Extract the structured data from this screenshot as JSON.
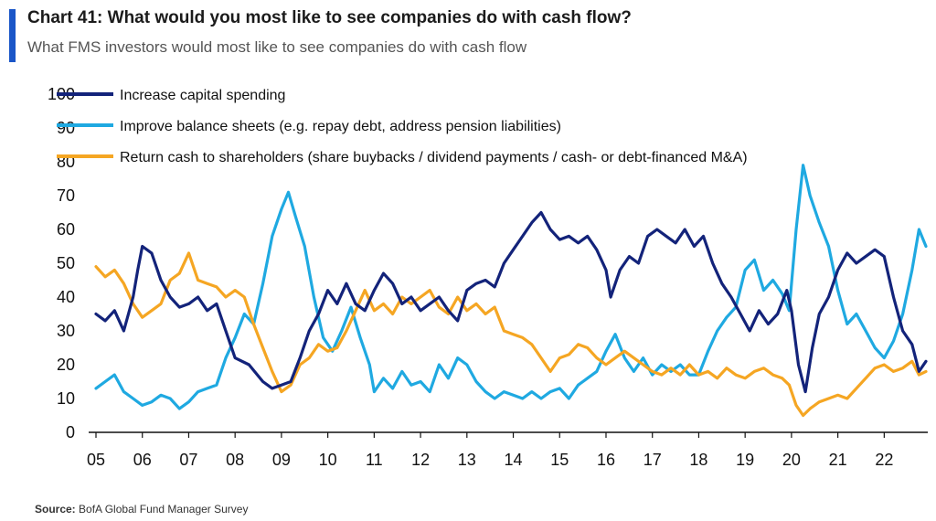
{
  "header": {
    "title": "Chart 41: What would you most like to see companies do with cash flow?",
    "subtitle": "What FMS investors would most like to see companies do with cash flow"
  },
  "footer": {
    "source_label": "Source:",
    "source_text": "BofA Global Fund Manager Survey"
  },
  "colors": {
    "accent_bar": "#1a56c8",
    "capex": "#13237a",
    "balance": "#1fa9e1",
    "shareholders": "#f5a623"
  },
  "chart_data": {
    "type": "line",
    "title": "",
    "xlabel": "",
    "ylabel": "",
    "ylim": [
      0,
      100
    ],
    "xlim": [
      2005,
      2022.9
    ],
    "yticks": [
      "0",
      "10",
      "20",
      "30",
      "40",
      "50",
      "60",
      "70",
      "80",
      "90",
      "100"
    ],
    "xticks": [
      {
        "value": 2005,
        "label": "05"
      },
      {
        "value": 2006,
        "label": "06"
      },
      {
        "value": 2007,
        "label": "07"
      },
      {
        "value": 2008,
        "label": "08"
      },
      {
        "value": 2009,
        "label": "09"
      },
      {
        "value": 2010,
        "label": "10"
      },
      {
        "value": 2011,
        "label": "11"
      },
      {
        "value": 2012,
        "label": "12"
      },
      {
        "value": 2013,
        "label": "13"
      },
      {
        "value": 2014,
        "label": "14"
      },
      {
        "value": 2015,
        "label": "15"
      },
      {
        "value": 2016,
        "label": "16"
      },
      {
        "value": 2017,
        "label": "17"
      },
      {
        "value": 2018,
        "label": "18"
      },
      {
        "value": 2019,
        "label": "19"
      },
      {
        "value": 2020,
        "label": "20"
      },
      {
        "value": 2021,
        "label": "21"
      },
      {
        "value": 2022,
        "label": "22"
      }
    ],
    "grid": false,
    "legend_position": "top-left",
    "series": [
      {
        "name": "Increase capital spending",
        "color": "#13237a",
        "points": [
          [
            2005.0,
            35
          ],
          [
            2005.2,
            33
          ],
          [
            2005.4,
            36
          ],
          [
            2005.6,
            30
          ],
          [
            2005.8,
            40
          ],
          [
            2005.9,
            48
          ],
          [
            2006.0,
            55
          ],
          [
            2006.2,
            53
          ],
          [
            2006.4,
            45
          ],
          [
            2006.6,
            40
          ],
          [
            2006.8,
            37
          ],
          [
            2007.0,
            38
          ],
          [
            2007.2,
            40
          ],
          [
            2007.4,
            36
          ],
          [
            2007.6,
            38
          ],
          [
            2007.8,
            30
          ],
          [
            2008.0,
            22
          ],
          [
            2008.3,
            20
          ],
          [
            2008.6,
            15
          ],
          [
            2008.8,
            13
          ],
          [
            2009.0,
            14
          ],
          [
            2009.2,
            15
          ],
          [
            2009.4,
            22
          ],
          [
            2009.6,
            30
          ],
          [
            2009.8,
            35
          ],
          [
            2010.0,
            42
          ],
          [
            2010.2,
            38
          ],
          [
            2010.4,
            44
          ],
          [
            2010.6,
            38
          ],
          [
            2010.8,
            36
          ],
          [
            2011.0,
            42
          ],
          [
            2011.2,
            47
          ],
          [
            2011.4,
            44
          ],
          [
            2011.6,
            38
          ],
          [
            2011.8,
            40
          ],
          [
            2012.0,
            36
          ],
          [
            2012.2,
            38
          ],
          [
            2012.4,
            40
          ],
          [
            2012.6,
            36
          ],
          [
            2012.8,
            33
          ],
          [
            2013.0,
            42
          ],
          [
            2013.2,
            44
          ],
          [
            2013.4,
            45
          ],
          [
            2013.6,
            43
          ],
          [
            2013.8,
            50
          ],
          [
            2014.0,
            54
          ],
          [
            2014.2,
            58
          ],
          [
            2014.4,
            62
          ],
          [
            2014.6,
            65
          ],
          [
            2014.8,
            60
          ],
          [
            2015.0,
            57
          ],
          [
            2015.2,
            58
          ],
          [
            2015.4,
            56
          ],
          [
            2015.6,
            58
          ],
          [
            2015.8,
            54
          ],
          [
            2016.0,
            48
          ],
          [
            2016.1,
            40
          ],
          [
            2016.3,
            48
          ],
          [
            2016.5,
            52
          ],
          [
            2016.7,
            50
          ],
          [
            2016.9,
            58
          ],
          [
            2017.1,
            60
          ],
          [
            2017.3,
            58
          ],
          [
            2017.5,
            56
          ],
          [
            2017.7,
            60
          ],
          [
            2017.9,
            55
          ],
          [
            2018.1,
            58
          ],
          [
            2018.3,
            50
          ],
          [
            2018.5,
            44
          ],
          [
            2018.7,
            40
          ],
          [
            2018.9,
            35
          ],
          [
            2019.1,
            30
          ],
          [
            2019.3,
            36
          ],
          [
            2019.5,
            32
          ],
          [
            2019.7,
            35
          ],
          [
            2019.9,
            42
          ],
          [
            2020.0,
            36
          ],
          [
            2020.15,
            20
          ],
          [
            2020.3,
            12
          ],
          [
            2020.45,
            25
          ],
          [
            2020.6,
            35
          ],
          [
            2020.8,
            40
          ],
          [
            2021.0,
            48
          ],
          [
            2021.2,
            53
          ],
          [
            2021.4,
            50
          ],
          [
            2021.6,
            52
          ],
          [
            2021.8,
            54
          ],
          [
            2022.0,
            52
          ],
          [
            2022.2,
            40
          ],
          [
            2022.4,
            30
          ],
          [
            2022.6,
            26
          ],
          [
            2022.75,
            18
          ],
          [
            2022.9,
            21
          ]
        ]
      },
      {
        "name": "Improve balance sheets (e.g. repay debt, address pension liabilities)",
        "color": "#1fa9e1",
        "points": [
          [
            2005.0,
            13
          ],
          [
            2005.2,
            15
          ],
          [
            2005.4,
            17
          ],
          [
            2005.6,
            12
          ],
          [
            2005.8,
            10
          ],
          [
            2006.0,
            8
          ],
          [
            2006.2,
            9
          ],
          [
            2006.4,
            11
          ],
          [
            2006.6,
            10
          ],
          [
            2006.8,
            7
          ],
          [
            2007.0,
            9
          ],
          [
            2007.2,
            12
          ],
          [
            2007.4,
            13
          ],
          [
            2007.6,
            14
          ],
          [
            2007.8,
            22
          ],
          [
            2008.0,
            28
          ],
          [
            2008.2,
            35
          ],
          [
            2008.4,
            32
          ],
          [
            2008.6,
            44
          ],
          [
            2008.8,
            58
          ],
          [
            2009.0,
            66
          ],
          [
            2009.15,
            71
          ],
          [
            2009.3,
            64
          ],
          [
            2009.5,
            55
          ],
          [
            2009.7,
            40
          ],
          [
            2009.9,
            28
          ],
          [
            2010.1,
            24
          ],
          [
            2010.3,
            30
          ],
          [
            2010.5,
            37
          ],
          [
            2010.7,
            28
          ],
          [
            2010.9,
            20
          ],
          [
            2011.0,
            12
          ],
          [
            2011.2,
            16
          ],
          [
            2011.4,
            13
          ],
          [
            2011.6,
            18
          ],
          [
            2011.8,
            14
          ],
          [
            2012.0,
            15
          ],
          [
            2012.2,
            12
          ],
          [
            2012.4,
            20
          ],
          [
            2012.6,
            16
          ],
          [
            2012.8,
            22
          ],
          [
            2013.0,
            20
          ],
          [
            2013.2,
            15
          ],
          [
            2013.4,
            12
          ],
          [
            2013.6,
            10
          ],
          [
            2013.8,
            12
          ],
          [
            2014.0,
            11
          ],
          [
            2014.2,
            10
          ],
          [
            2014.4,
            12
          ],
          [
            2014.6,
            10
          ],
          [
            2014.8,
            12
          ],
          [
            2015.0,
            13
          ],
          [
            2015.2,
            10
          ],
          [
            2015.4,
            14
          ],
          [
            2015.6,
            16
          ],
          [
            2015.8,
            18
          ],
          [
            2016.0,
            24
          ],
          [
            2016.2,
            29
          ],
          [
            2016.4,
            22
          ],
          [
            2016.6,
            18
          ],
          [
            2016.8,
            22
          ],
          [
            2017.0,
            17
          ],
          [
            2017.2,
            20
          ],
          [
            2017.4,
            18
          ],
          [
            2017.6,
            20
          ],
          [
            2017.8,
            17
          ],
          [
            2018.0,
            17
          ],
          [
            2018.2,
            24
          ],
          [
            2018.4,
            30
          ],
          [
            2018.6,
            34
          ],
          [
            2018.8,
            37
          ],
          [
            2019.0,
            48
          ],
          [
            2019.2,
            51
          ],
          [
            2019.4,
            42
          ],
          [
            2019.6,
            45
          ],
          [
            2019.8,
            41
          ],
          [
            2019.95,
            36
          ],
          [
            2020.1,
            60
          ],
          [
            2020.25,
            79
          ],
          [
            2020.4,
            70
          ],
          [
            2020.6,
            62
          ],
          [
            2020.8,
            55
          ],
          [
            2021.0,
            42
          ],
          [
            2021.2,
            32
          ],
          [
            2021.4,
            35
          ],
          [
            2021.6,
            30
          ],
          [
            2021.8,
            25
          ],
          [
            2022.0,
            22
          ],
          [
            2022.2,
            27
          ],
          [
            2022.4,
            35
          ],
          [
            2022.6,
            48
          ],
          [
            2022.75,
            60
          ],
          [
            2022.9,
            55
          ]
        ]
      },
      {
        "name": "Return cash to shareholders (share buybacks / dividend payments / cash- or debt-financed M&A)",
        "color": "#f5a623",
        "points": [
          [
            2005.0,
            49
          ],
          [
            2005.2,
            46
          ],
          [
            2005.4,
            48
          ],
          [
            2005.6,
            44
          ],
          [
            2005.8,
            38
          ],
          [
            2006.0,
            34
          ],
          [
            2006.2,
            36
          ],
          [
            2006.4,
            38
          ],
          [
            2006.6,
            45
          ],
          [
            2006.8,
            47
          ],
          [
            2007.0,
            53
          ],
          [
            2007.2,
            45
          ],
          [
            2007.4,
            44
          ],
          [
            2007.6,
            43
          ],
          [
            2007.8,
            40
          ],
          [
            2008.0,
            42
          ],
          [
            2008.2,
            40
          ],
          [
            2008.4,
            32
          ],
          [
            2008.6,
            25
          ],
          [
            2008.8,
            18
          ],
          [
            2009.0,
            12
          ],
          [
            2009.2,
            14
          ],
          [
            2009.4,
            20
          ],
          [
            2009.6,
            22
          ],
          [
            2009.8,
            26
          ],
          [
            2010.0,
            24
          ],
          [
            2010.2,
            25
          ],
          [
            2010.4,
            30
          ],
          [
            2010.6,
            36
          ],
          [
            2010.8,
            42
          ],
          [
            2011.0,
            36
          ],
          [
            2011.2,
            38
          ],
          [
            2011.4,
            35
          ],
          [
            2011.6,
            40
          ],
          [
            2011.8,
            38
          ],
          [
            2012.0,
            40
          ],
          [
            2012.2,
            42
          ],
          [
            2012.4,
            37
          ],
          [
            2012.6,
            35
          ],
          [
            2012.8,
            40
          ],
          [
            2013.0,
            36
          ],
          [
            2013.2,
            38
          ],
          [
            2013.4,
            35
          ],
          [
            2013.6,
            37
          ],
          [
            2013.8,
            30
          ],
          [
            2014.0,
            29
          ],
          [
            2014.2,
            28
          ],
          [
            2014.4,
            26
          ],
          [
            2014.6,
            22
          ],
          [
            2014.8,
            18
          ],
          [
            2015.0,
            22
          ],
          [
            2015.2,
            23
          ],
          [
            2015.4,
            26
          ],
          [
            2015.6,
            25
          ],
          [
            2015.8,
            22
          ],
          [
            2016.0,
            20
          ],
          [
            2016.2,
            22
          ],
          [
            2016.4,
            24
          ],
          [
            2016.6,
            22
          ],
          [
            2016.8,
            20
          ],
          [
            2017.0,
            18
          ],
          [
            2017.2,
            17
          ],
          [
            2017.4,
            19
          ],
          [
            2017.6,
            17
          ],
          [
            2017.8,
            20
          ],
          [
            2018.0,
            17
          ],
          [
            2018.2,
            18
          ],
          [
            2018.4,
            16
          ],
          [
            2018.6,
            19
          ],
          [
            2018.8,
            17
          ],
          [
            2019.0,
            16
          ],
          [
            2019.2,
            18
          ],
          [
            2019.4,
            19
          ],
          [
            2019.6,
            17
          ],
          [
            2019.8,
            16
          ],
          [
            2019.95,
            14
          ],
          [
            2020.1,
            8
          ],
          [
            2020.25,
            5
          ],
          [
            2020.4,
            7
          ],
          [
            2020.6,
            9
          ],
          [
            2020.8,
            10
          ],
          [
            2021.0,
            11
          ],
          [
            2021.2,
            10
          ],
          [
            2021.4,
            13
          ],
          [
            2021.6,
            16
          ],
          [
            2021.8,
            19
          ],
          [
            2022.0,
            20
          ],
          [
            2022.2,
            18
          ],
          [
            2022.4,
            19
          ],
          [
            2022.6,
            21
          ],
          [
            2022.75,
            17
          ],
          [
            2022.9,
            18
          ]
        ]
      }
    ]
  }
}
